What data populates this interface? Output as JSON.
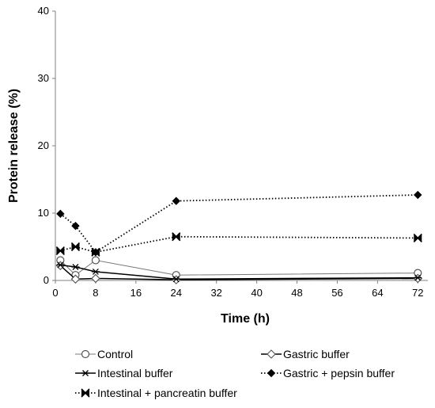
{
  "chart_data": {
    "type": "line",
    "xlabel": "Time (h)",
    "ylabel": "Protein release (%)",
    "xlim": [
      0,
      74
    ],
    "ylim": [
      0,
      40
    ],
    "xticks": [
      0,
      8,
      16,
      24,
      32,
      40,
      48,
      56,
      64,
      72
    ],
    "yticks": [
      0,
      10,
      20,
      30,
      40
    ],
    "grid": false,
    "legend_position": "bottom",
    "series": [
      {
        "name": "Control",
        "style": "solid-thin",
        "marker": "open-circle",
        "color": "#666666",
        "x": [
          1,
          4,
          8,
          24,
          72
        ],
        "y": [
          3.0,
          0.8,
          3.0,
          0.8,
          1.1
        ]
      },
      {
        "name": "Gastric buffer",
        "style": "solid",
        "marker": "open-diamond",
        "color": "#000000",
        "x": [
          1,
          4,
          8,
          24,
          72
        ],
        "y": [
          2.2,
          0.2,
          0.3,
          0.1,
          0.3
        ]
      },
      {
        "name": "Intestinal buffer",
        "style": "solid",
        "marker": "asterisk",
        "color": "#000000",
        "x": [
          1,
          4,
          8,
          24,
          72
        ],
        "y": [
          2.3,
          2.0,
          1.3,
          0.2,
          0.4
        ]
      },
      {
        "name": "Gastric + pepsin buffer",
        "style": "dotted",
        "marker": "filled-diamond",
        "color": "#000000",
        "x": [
          1,
          4,
          8,
          24,
          72
        ],
        "y": [
          9.9,
          8.1,
          4.2,
          11.8,
          12.7
        ]
      },
      {
        "name": "Intestinal + pancreatin buffer",
        "style": "dotted",
        "marker": "bowtie",
        "color": "#000000",
        "x": [
          1,
          4,
          8,
          24,
          72
        ],
        "y": [
          4.4,
          5.0,
          4.2,
          6.5,
          6.3
        ]
      }
    ]
  }
}
